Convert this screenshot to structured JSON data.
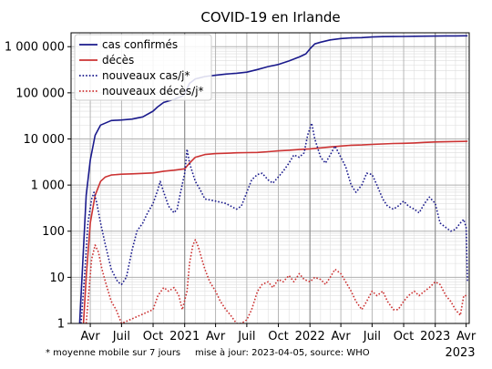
{
  "chart_data": {
    "type": "line",
    "title": "COVID-19 en Irlande",
    "yscale": "log",
    "ylim": [
      1,
      2000000
    ],
    "xlim": [
      "2020-02-05",
      "2023-04-10"
    ],
    "y_ticks": [
      {
        "value": 1,
        "label": "1"
      },
      {
        "value": 10,
        "label": "10"
      },
      {
        "value": 100,
        "label": "100"
      },
      {
        "value": 1000,
        "label": "1 000"
      },
      {
        "value": 10000,
        "label": "10 000"
      },
      {
        "value": 100000,
        "label": "100 000"
      },
      {
        "value": 1000000,
        "label": "1 000 000"
      }
    ],
    "x_ticks": [
      {
        "date": "2020-04-01",
        "label": "Avr"
      },
      {
        "date": "2020-07-01",
        "label": "Juil"
      },
      {
        "date": "2020-10-01",
        "label": "Oct"
      },
      {
        "date": "2021-01-01",
        "label": "2021"
      },
      {
        "date": "2021-04-01",
        "label": "Avr"
      },
      {
        "date": "2021-07-01",
        "label": "Juil"
      },
      {
        "date": "2021-10-01",
        "label": "Oct"
      },
      {
        "date": "2022-01-01",
        "label": "2022"
      },
      {
        "date": "2022-04-01",
        "label": "Avr"
      },
      {
        "date": "2022-07-01",
        "label": "Juil"
      },
      {
        "date": "2022-10-01",
        "label": "Oct"
      },
      {
        "date": "2023-01-01",
        "label": "2023"
      },
      {
        "date": "2023-04-01",
        "label": "Avr"
      }
    ],
    "x_extra_label": "2023",
    "grid": true,
    "legend_position": "top-left",
    "series": [
      {
        "name": "cas confirmés",
        "style": "solid",
        "color": "#1a1a8c",
        "points": [
          [
            "2020-03-01",
            1
          ],
          [
            "2020-03-10",
            20
          ],
          [
            "2020-03-20",
            600
          ],
          [
            "2020-04-01",
            3500
          ],
          [
            "2020-04-15",
            12000
          ],
          [
            "2020-05-01",
            20000
          ],
          [
            "2020-06-01",
            25000
          ],
          [
            "2020-07-01",
            25800
          ],
          [
            "2020-08-01",
            27000
          ],
          [
            "2020-09-01",
            30000
          ],
          [
            "2020-10-01",
            40000
          ],
          [
            "2020-10-15",
            50000
          ],
          [
            "2020-11-01",
            62000
          ],
          [
            "2020-12-01",
            72000
          ],
          [
            "2020-12-25",
            85000
          ],
          [
            "2021-01-01",
            95000
          ],
          [
            "2021-01-15",
            160000
          ],
          [
            "2021-02-01",
            200000
          ],
          [
            "2021-03-01",
            225000
          ],
          [
            "2021-04-01",
            240000
          ],
          [
            "2021-05-01",
            255000
          ],
          [
            "2021-06-01",
            265000
          ],
          [
            "2021-07-01",
            280000
          ],
          [
            "2021-08-01",
            320000
          ],
          [
            "2021-09-01",
            370000
          ],
          [
            "2021-10-01",
            410000
          ],
          [
            "2021-11-01",
            490000
          ],
          [
            "2021-12-01",
            600000
          ],
          [
            "2021-12-20",
            700000
          ],
          [
            "2022-01-01",
            900000
          ],
          [
            "2022-01-15",
            1150000
          ],
          [
            "2022-02-01",
            1250000
          ],
          [
            "2022-03-01",
            1400000
          ],
          [
            "2022-04-01",
            1500000
          ],
          [
            "2022-05-01",
            1550000
          ],
          [
            "2022-06-01",
            1570000
          ],
          [
            "2022-07-01",
            1620000
          ],
          [
            "2022-08-01",
            1650000
          ],
          [
            "2022-09-01",
            1660000
          ],
          [
            "2022-10-01",
            1670000
          ],
          [
            "2022-11-01",
            1680000
          ],
          [
            "2022-12-01",
            1690000
          ],
          [
            "2023-01-01",
            1700000
          ],
          [
            "2023-02-01",
            1710000
          ],
          [
            "2023-03-01",
            1715000
          ],
          [
            "2023-04-05",
            1720000
          ]
        ]
      },
      {
        "name": "décès",
        "style": "solid",
        "color": "#cc3333",
        "points": [
          [
            "2020-03-12",
            1
          ],
          [
            "2020-03-20",
            10
          ],
          [
            "2020-04-01",
            150
          ],
          [
            "2020-04-15",
            600
          ],
          [
            "2020-05-01",
            1200
          ],
          [
            "2020-05-15",
            1500
          ],
          [
            "2020-06-01",
            1650
          ],
          [
            "2020-07-01",
            1720
          ],
          [
            "2020-08-01",
            1750
          ],
          [
            "2020-09-01",
            1790
          ],
          [
            "2020-10-01",
            1830
          ],
          [
            "2020-11-01",
            2000
          ],
          [
            "2020-12-01",
            2100
          ],
          [
            "2021-01-01",
            2250
          ],
          [
            "2021-01-15",
            3000
          ],
          [
            "2021-02-01",
            4000
          ],
          [
            "2021-03-01",
            4600
          ],
          [
            "2021-04-01",
            4800
          ],
          [
            "2021-05-01",
            4900
          ],
          [
            "2021-06-01",
            5000
          ],
          [
            "2021-07-01",
            5050
          ],
          [
            "2021-08-01",
            5100
          ],
          [
            "2021-09-01",
            5300
          ],
          [
            "2021-10-01",
            5500
          ],
          [
            "2021-11-01",
            5700
          ],
          [
            "2021-12-01",
            5900
          ],
          [
            "2022-01-01",
            6100
          ],
          [
            "2022-02-01",
            6400
          ],
          [
            "2022-03-01",
            6700
          ],
          [
            "2022-04-01",
            7000
          ],
          [
            "2022-05-01",
            7300
          ],
          [
            "2022-06-01",
            7400
          ],
          [
            "2022-07-01",
            7600
          ],
          [
            "2022-08-01",
            7800
          ],
          [
            "2022-09-01",
            7950
          ],
          [
            "2022-10-01",
            8050
          ],
          [
            "2022-11-01",
            8200
          ],
          [
            "2022-12-01",
            8400
          ],
          [
            "2023-01-01",
            8600
          ],
          [
            "2023-02-01",
            8700
          ],
          [
            "2023-03-01",
            8800
          ],
          [
            "2023-04-05",
            8900
          ]
        ]
      },
      {
        "name": "nouveaux cas/j*",
        "style": "dotted",
        "color": "#1a1a8c",
        "points": [
          [
            "2020-03-05",
            1
          ],
          [
            "2020-03-15",
            10
          ],
          [
            "2020-03-25",
            150
          ],
          [
            "2020-04-05",
            500
          ],
          [
            "2020-04-12",
            700
          ],
          [
            "2020-04-20",
            400
          ],
          [
            "2020-05-01",
            150
          ],
          [
            "2020-05-15",
            50
          ],
          [
            "2020-06-01",
            15
          ],
          [
            "2020-06-20",
            8
          ],
          [
            "2020-07-01",
            7
          ],
          [
            "2020-07-15",
            10
          ],
          [
            "2020-08-01",
            40
          ],
          [
            "2020-08-15",
            100
          ],
          [
            "2020-09-01",
            150
          ],
          [
            "2020-09-15",
            250
          ],
          [
            "2020-10-01",
            400
          ],
          [
            "2020-10-15",
            800
          ],
          [
            "2020-10-22",
            1200
          ],
          [
            "2020-11-01",
            700
          ],
          [
            "2020-11-15",
            350
          ],
          [
            "2020-12-01",
            250
          ],
          [
            "2020-12-10",
            300
          ],
          [
            "2020-12-20",
            700
          ],
          [
            "2021-01-01",
            1800
          ],
          [
            "2021-01-08",
            6000
          ],
          [
            "2021-01-15",
            3000
          ],
          [
            "2021-02-01",
            1200
          ],
          [
            "2021-02-15",
            800
          ],
          [
            "2021-03-01",
            500
          ],
          [
            "2021-04-01",
            450
          ],
          [
            "2021-05-01",
            400
          ],
          [
            "2021-06-01",
            300
          ],
          [
            "2021-06-15",
            350
          ],
          [
            "2021-07-01",
            700
          ],
          [
            "2021-07-15",
            1300
          ],
          [
            "2021-08-01",
            1700
          ],
          [
            "2021-08-15",
            1800
          ],
          [
            "2021-09-01",
            1300
          ],
          [
            "2021-09-15",
            1100
          ],
          [
            "2021-10-01",
            1500
          ],
          [
            "2021-10-15",
            2000
          ],
          [
            "2021-11-01",
            3000
          ],
          [
            "2021-11-15",
            4500
          ],
          [
            "2021-12-01",
            4000
          ],
          [
            "2021-12-15",
            5000
          ],
          [
            "2021-12-25",
            12000
          ],
          [
            "2022-01-06",
            22000
          ],
          [
            "2022-01-15",
            10000
          ],
          [
            "2022-02-01",
            4000
          ],
          [
            "2022-02-15",
            3000
          ],
          [
            "2022-03-01",
            4500
          ],
          [
            "2022-03-15",
            7000
          ],
          [
            "2022-04-01",
            4000
          ],
          [
            "2022-04-15",
            2500
          ],
          [
            "2022-05-01",
            1000
          ],
          [
            "2022-05-15",
            700
          ],
          [
            "2022-06-01",
            1000
          ],
          [
            "2022-06-15",
            1800
          ],
          [
            "2022-07-01",
            1700
          ],
          [
            "2022-07-15",
            1000
          ],
          [
            "2022-08-01",
            500
          ],
          [
            "2022-08-15",
            350
          ],
          [
            "2022-09-01",
            300
          ],
          [
            "2022-09-15",
            350
          ],
          [
            "2022-10-01",
            450
          ],
          [
            "2022-10-15",
            350
          ],
          [
            "2022-11-01",
            300
          ],
          [
            "2022-11-15",
            250
          ],
          [
            "2022-12-01",
            400
          ],
          [
            "2022-12-15",
            550
          ],
          [
            "2023-01-01",
            400
          ],
          [
            "2023-01-15",
            150
          ],
          [
            "2023-02-01",
            120
          ],
          [
            "2023-02-15",
            100
          ],
          [
            "2023-03-01",
            110
          ],
          [
            "2023-03-15",
            150
          ],
          [
            "2023-03-25",
            180
          ],
          [
            "2023-04-01",
            120
          ],
          [
            "2023-04-05",
            8
          ]
        ]
      },
      {
        "name": "nouveaux décès/j*",
        "style": "dotted",
        "color": "#cc3333",
        "points": [
          [
            "2020-03-20",
            1
          ],
          [
            "2020-03-28",
            5
          ],
          [
            "2020-04-05",
            25
          ],
          [
            "2020-04-15",
            50
          ],
          [
            "2020-04-25",
            35
          ],
          [
            "2020-05-05",
            15
          ],
          [
            "2020-05-15",
            8
          ],
          [
            "2020-06-01",
            3
          ],
          [
            "2020-06-15",
            2
          ],
          [
            "2020-07-01",
            1
          ],
          [
            "2020-10-01",
            2
          ],
          [
            "2020-10-15",
            4
          ],
          [
            "2020-11-01",
            6
          ],
          [
            "2020-11-15",
            5
          ],
          [
            "2020-12-01",
            6
          ],
          [
            "2020-12-15",
            4
          ],
          [
            "2020-12-25",
            2
          ],
          [
            "2021-01-08",
            5
          ],
          [
            "2021-01-15",
            20
          ],
          [
            "2021-01-25",
            50
          ],
          [
            "2021-02-01",
            65
          ],
          [
            "2021-02-10",
            45
          ],
          [
            "2021-02-20",
            25
          ],
          [
            "2021-03-01",
            15
          ],
          [
            "2021-03-15",
            8
          ],
          [
            "2021-04-01",
            5
          ],
          [
            "2021-04-15",
            3
          ],
          [
            "2021-05-01",
            2
          ],
          [
            "2021-05-15",
            1.5
          ],
          [
            "2021-06-01",
            1
          ],
          [
            "2021-06-15",
            1
          ],
          [
            "2021-07-01",
            1.2
          ],
          [
            "2021-07-15",
            2
          ],
          [
            "2021-08-01",
            5
          ],
          [
            "2021-08-15",
            7
          ],
          [
            "2021-09-01",
            8
          ],
          [
            "2021-09-15",
            6
          ],
          [
            "2021-10-01",
            9
          ],
          [
            "2021-10-15",
            8
          ],
          [
            "2021-11-01",
            11
          ],
          [
            "2021-11-15",
            8
          ],
          [
            "2021-12-01",
            12
          ],
          [
            "2021-12-15",
            9
          ],
          [
            "2022-01-01",
            8
          ],
          [
            "2022-01-15",
            10
          ],
          [
            "2022-02-01",
            9
          ],
          [
            "2022-02-15",
            7
          ],
          [
            "2022-03-01",
            10
          ],
          [
            "2022-03-15",
            15
          ],
          [
            "2022-04-01",
            12
          ],
          [
            "2022-04-15",
            8
          ],
          [
            "2022-05-01",
            5
          ],
          [
            "2022-05-15",
            3
          ],
          [
            "2022-06-01",
            2
          ],
          [
            "2022-06-15",
            3
          ],
          [
            "2022-07-01",
            5
          ],
          [
            "2022-07-15",
            4
          ],
          [
            "2022-08-01",
            5
          ],
          [
            "2022-08-15",
            3
          ],
          [
            "2022-09-01",
            2
          ],
          [
            "2022-09-15",
            2
          ],
          [
            "2022-10-01",
            3
          ],
          [
            "2022-10-15",
            4
          ],
          [
            "2022-11-01",
            5
          ],
          [
            "2022-11-15",
            4
          ],
          [
            "2022-12-01",
            5
          ],
          [
            "2022-12-15",
            6
          ],
          [
            "2023-01-01",
            8
          ],
          [
            "2023-01-15",
            7
          ],
          [
            "2023-02-01",
            4
          ],
          [
            "2023-02-15",
            3
          ],
          [
            "2023-03-01",
            2
          ],
          [
            "2023-03-15",
            1.5
          ],
          [
            "2023-03-25",
            4
          ],
          [
            "2023-04-05",
            4
          ]
        ]
      }
    ],
    "annotations": [
      {
        "text": "* moyenne mobile sur 7 jours"
      },
      {
        "text": "mise à jour: 2023-04-05, source: WHO"
      }
    ]
  }
}
